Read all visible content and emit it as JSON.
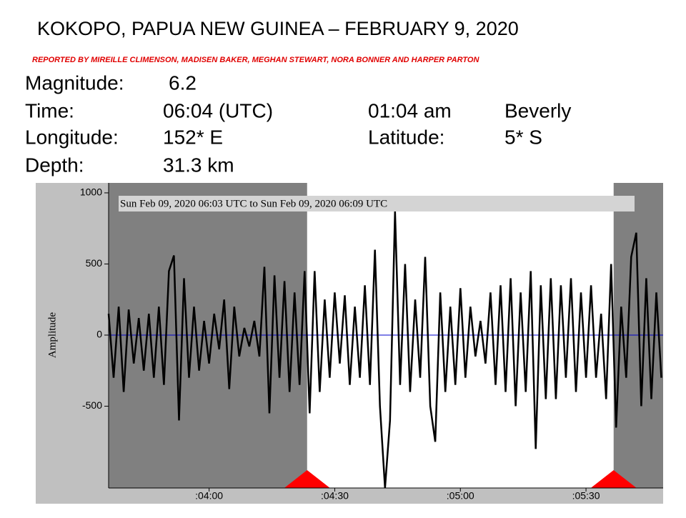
{
  "header": {
    "title": "KOKOPO, PAPUA NEW GUINEA – FEBRUARY 9, 2020",
    "reporters": "REPORTED BY MIREILLE CLIMENSON, MADISEN BAKER, MEGHAN STEWART, NORA BONNER AND HARPER PARTON"
  },
  "info": {
    "rows": [
      [
        "Magnitude:",
        "6.2"
      ],
      [
        "Time:",
        "06:04 (UTC)",
        "01:04 am",
        "Beverly"
      ],
      [
        "Longitude:",
        "152* E",
        "Latitude:",
        "5* S"
      ],
      [
        "Depth:",
        "31.3 km"
      ]
    ]
  },
  "chart_data": {
    "type": "line",
    "subtitle": "Sun Feb 09, 2020 06:03 UTC to Sun Feb 09, 2020 06:09 UTC",
    "y_label": "Amplitude",
    "x": [
      3.6,
      3.62,
      3.64,
      3.66,
      3.68,
      3.7,
      3.72,
      3.74,
      3.76,
      3.78,
      3.8,
      3.82,
      3.84,
      3.86,
      3.88,
      3.9,
      3.92,
      3.94,
      3.96,
      3.98,
      4.0,
      4.02,
      4.04,
      4.06,
      4.08,
      4.1,
      4.12,
      4.14,
      4.16,
      4.18,
      4.2,
      4.22,
      4.24,
      4.26,
      4.28,
      4.3,
      4.32,
      4.34,
      4.36,
      4.38,
      4.4,
      4.42,
      4.44,
      4.46,
      4.48,
      4.5,
      4.52,
      4.54,
      4.56,
      4.58,
      4.6,
      4.62,
      4.64,
      4.66,
      4.68,
      4.7,
      4.72,
      4.74,
      4.76,
      4.78,
      4.8,
      4.82,
      4.84,
      4.86,
      4.88,
      4.9,
      4.92,
      4.94,
      4.96,
      4.98,
      5.0,
      5.02,
      5.04,
      5.06,
      5.08,
      5.1,
      5.12,
      5.14,
      5.16,
      5.18,
      5.2,
      5.22,
      5.24,
      5.26,
      5.28,
      5.3,
      5.32,
      5.34,
      5.36,
      5.38,
      5.4,
      5.42,
      5.44,
      5.46,
      5.48,
      5.5,
      5.52,
      5.54,
      5.56,
      5.58,
      5.6,
      5.62,
      5.64,
      5.66,
      5.68,
      5.7,
      5.72,
      5.74,
      5.76,
      5.78,
      5.8
    ],
    "values": [
      150,
      -300,
      200,
      -400,
      180,
      -200,
      120,
      -250,
      150,
      -300,
      200,
      -350,
      450,
      560,
      -600,
      400,
      -300,
      200,
      -250,
      100,
      -200,
      150,
      -100,
      250,
      -380,
      200,
      -150,
      50,
      -80,
      100,
      -150,
      480,
      -550,
      420,
      -300,
      380,
      -400,
      300,
      -350,
      450,
      -550,
      450,
      -400,
      250,
      -300,
      300,
      -200,
      280,
      -350,
      200,
      -300,
      350,
      -350,
      600,
      -500,
      -1075,
      -600,
      870,
      -350,
      500,
      -400,
      250,
      -300,
      550,
      -500,
      -750,
      300,
      -400,
      200,
      -350,
      330,
      -300,
      200,
      -150,
      100,
      -200,
      300,
      -350,
      350,
      -400,
      400,
      -500,
      300,
      -400,
      450,
      -800,
      350,
      -450,
      400,
      -450,
      350,
      -300,
      400,
      -400,
      300,
      -300,
      350,
      -300,
      150,
      -450,
      500,
      -650,
      200,
      -300,
      550,
      720,
      -500,
      400,
      -450,
      300,
      -300
    ],
    "color": "#000000",
    "zero_line_color": "#0000cc",
    "window": [
      4.39,
      5.61
    ],
    "window_marker_color": "#ff0000",
    "xlim": [
      3.6,
      5.807
    ],
    "ylim": [
      -1075,
      1070
    ],
    "xticks": [
      {
        "value": 4.0,
        "label": ":04:00"
      },
      {
        "value": 4.5,
        "label": ":04:30"
      },
      {
        "value": 5.0,
        "label": ":05:00"
      },
      {
        "value": 5.5,
        "label": ":05:30"
      }
    ],
    "yticks": [
      -500,
      0,
      500,
      1000
    ]
  }
}
